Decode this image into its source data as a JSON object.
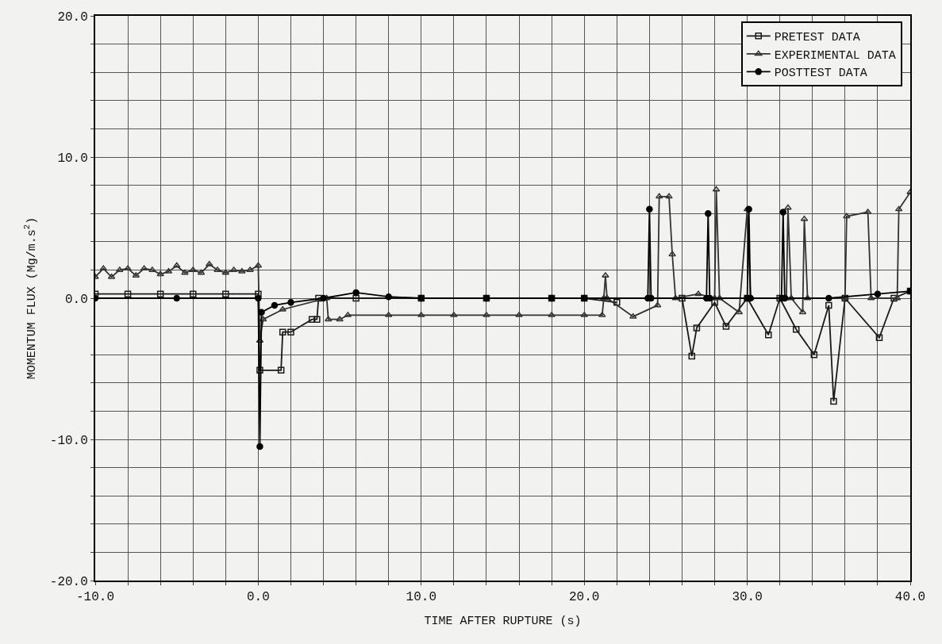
{
  "chart_data": {
    "type": "line",
    "xlabel": "TIME AFTER RUPTURE (s)",
    "ylabel": "MOMENTUM FLUX (Mg/m.s$^{2}$)",
    "xlim": [
      -10,
      40
    ],
    "ylim": [
      -20,
      20
    ],
    "xticks": [
      {
        "value": -10,
        "label": "-10.0"
      },
      {
        "value": -8,
        "label": null
      },
      {
        "value": -6,
        "label": null
      },
      {
        "value": -4,
        "label": null
      },
      {
        "value": -2,
        "label": null
      },
      {
        "value": 0,
        "label": "0.0"
      },
      {
        "value": 2,
        "label": null
      },
      {
        "value": 4,
        "label": null
      },
      {
        "value": 6,
        "label": null
      },
      {
        "value": 8,
        "label": null
      },
      {
        "value": 10,
        "label": "10.0"
      },
      {
        "value": 12,
        "label": null
      },
      {
        "value": 14,
        "label": null
      },
      {
        "value": 16,
        "label": null
      },
      {
        "value": 18,
        "label": null
      },
      {
        "value": 20,
        "label": "20.0"
      },
      {
        "value": 22,
        "label": null
      },
      {
        "value": 24,
        "label": null
      },
      {
        "value": 26,
        "label": null
      },
      {
        "value": 28,
        "label": null
      },
      {
        "value": 30,
        "label": "30.0"
      },
      {
        "value": 32,
        "label": null
      },
      {
        "value": 34,
        "label": null
      },
      {
        "value": 36,
        "label": null
      },
      {
        "value": 38,
        "label": null
      },
      {
        "value": 40,
        "label": "40.0"
      }
    ],
    "yticks": [
      {
        "value": -20,
        "label": "-20.0"
      },
      {
        "value": -18,
        "label": null
      },
      {
        "value": -16,
        "label": null
      },
      {
        "value": -14,
        "label": null
      },
      {
        "value": -12,
        "label": null
      },
      {
        "value": -10,
        "label": "-10.0"
      },
      {
        "value": -8,
        "label": null
      },
      {
        "value": -6,
        "label": null
      },
      {
        "value": -4,
        "label": null
      },
      {
        "value": -2,
        "label": null
      },
      {
        "value": 0,
        "label": "0.0"
      },
      {
        "value": 2,
        "label": null
      },
      {
        "value": 4,
        "label": null
      },
      {
        "value": 6,
        "label": null
      },
      {
        "value": 8,
        "label": null
      },
      {
        "value": 10,
        "label": "10.0"
      },
      {
        "value": 12,
        "label": null
      },
      {
        "value": 14,
        "label": null
      },
      {
        "value": 16,
        "label": null
      },
      {
        "value": 18,
        "label": null
      },
      {
        "value": 20,
        "label": "20.0"
      }
    ],
    "grid": true,
    "legend": "top right",
    "line_style": "solid",
    "series": [
      {
        "name": "PRETEST DATA",
        "color": "#1a1a1a",
        "marker": "square",
        "x": [
          -10,
          -8,
          -6,
          -4,
          -2,
          0,
          0.1,
          1.4,
          1.5,
          2.0,
          3.3,
          3.6,
          3.7,
          6,
          10,
          14,
          18,
          20,
          22,
          24,
          26,
          26.6,
          26.9,
          28,
          28.7,
          30,
          31.3,
          32,
          33,
          34.1,
          35,
          35.3,
          36,
          38.1,
          39,
          40
        ],
        "values": [
          0.3,
          0.3,
          0.3,
          0.3,
          0.3,
          0.3,
          -5.1,
          -5.1,
          -2.4,
          -2.4,
          -1.5,
          -1.5,
          0,
          0,
          0,
          0,
          0,
          0,
          -0.3,
          null,
          0,
          -4.1,
          -2.1,
          -0.3,
          -2.0,
          0,
          -2.6,
          0,
          -2.2,
          -4.0,
          -0.5,
          -7.3,
          0,
          -2.8,
          0,
          0.5
        ]
      },
      {
        "name": "EXPERIMENTAL DATA",
        "color": "#333333",
        "marker": "triangle",
        "x": [
          -10,
          -9.5,
          -9,
          -8.5,
          -8,
          -7.5,
          -7,
          -6.5,
          -6,
          -5.5,
          -5,
          -4.5,
          -4,
          -3.5,
          -3,
          -2.5,
          -2,
          -1.5,
          -1,
          -0.5,
          0,
          0.1,
          0.3,
          1.5,
          4.2,
          4.3,
          5.0,
          5.5,
          8,
          10,
          12,
          14,
          16,
          18,
          20,
          21.1,
          21.2,
          21.3,
          21.4,
          23,
          24.5,
          24.6,
          25.2,
          25.4,
          25.6,
          27,
          28,
          28.1,
          28.3,
          29.5,
          30,
          30.2,
          32.4,
          32.5,
          32.7,
          33.4,
          33.5,
          33.7,
          36,
          36.1,
          37.4,
          37.6,
          39.2,
          39.3,
          40
        ],
        "values": [
          1.5,
          2.1,
          1.5,
          2.0,
          2.1,
          1.6,
          2.1,
          2.0,
          1.7,
          1.9,
          2.3,
          1.8,
          2.0,
          1.8,
          2.4,
          2.0,
          1.8,
          2.0,
          1.9,
          2.0,
          2.3,
          -3.0,
          -1.5,
          -0.8,
          0,
          -1.5,
          -1.5,
          -1.2,
          -1.2,
          -1.2,
          -1.2,
          -1.2,
          -1.2,
          -1.2,
          -1.2,
          -1.2,
          0,
          1.6,
          0,
          -1.3,
          -0.5,
          7.2,
          7.2,
          3.1,
          0,
          0.3,
          0,
          7.7,
          0,
          -1.0,
          6.3,
          0,
          0,
          6.4,
          0,
          -1.0,
          5.6,
          0,
          0,
          5.8,
          6.1,
          0,
          0,
          6.3,
          7.5
        ]
      },
      {
        "name": "POSTTEST DATA",
        "color": "#000000",
        "marker": "circle",
        "x": [
          -10,
          -5,
          0,
          0.1,
          0.2,
          1,
          2,
          4,
          6,
          8,
          10,
          14,
          18,
          20,
          23.9,
          24.0,
          24.1,
          27.5,
          27.6,
          27.7,
          30.0,
          30.1,
          30.2,
          32.1,
          32.2,
          32.3,
          35,
          38,
          40
        ],
        "values": [
          0,
          0,
          0,
          -10.5,
          -1.0,
          -0.5,
          -0.3,
          0,
          0.4,
          0.1,
          0,
          0,
          0,
          0,
          0,
          6.3,
          0,
          0,
          6.0,
          0,
          0,
          6.3,
          0,
          0,
          6.1,
          0,
          0,
          0.3,
          0.5
        ]
      }
    ]
  }
}
